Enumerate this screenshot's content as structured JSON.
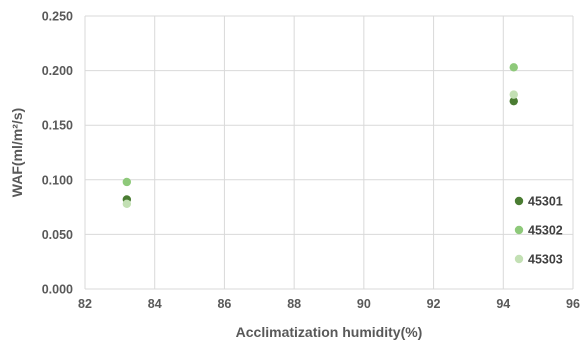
{
  "chart_data": {
    "type": "scatter",
    "xlabel": "Acclimatization humidity(%)",
    "ylabel": "WAF(ml/m²/s)",
    "xlim": [
      82,
      96
    ],
    "ylim": [
      0,
      0.25
    ],
    "x_ticks": [
      "82",
      "84",
      "86",
      "88",
      "90",
      "92",
      "94",
      "96"
    ],
    "y_ticks": [
      "0.000",
      "0.050",
      "0.100",
      "0.150",
      "0.200",
      "0.250"
    ],
    "grid": true,
    "legend_position": "right",
    "series": [
      {
        "name": "45301",
        "color": "#4a7c32",
        "points": [
          {
            "x": 83.2,
            "y": 0.082
          },
          {
            "x": 94.3,
            "y": 0.172
          }
        ]
      },
      {
        "name": "45302",
        "color": "#8ec97a",
        "points": [
          {
            "x": 83.2,
            "y": 0.098
          },
          {
            "x": 94.3,
            "y": 0.203
          }
        ]
      },
      {
        "name": "45303",
        "color": "#c3e0b4",
        "points": [
          {
            "x": 83.2,
            "y": 0.078
          },
          {
            "x": 94.3,
            "y": 0.178
          }
        ]
      }
    ]
  }
}
